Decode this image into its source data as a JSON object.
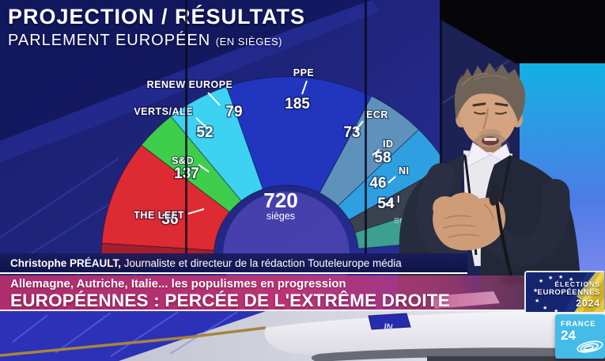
{
  "header": {
    "title": "PROJECTION / RÉSULTATS",
    "subtitle": "PARLEMENT EUROPÉEN",
    "subtitle_note": "(EN SIÈGES)"
  },
  "chart_data": {
    "type": "pie",
    "variant": "hemicycle-semicircle",
    "title": "PROJECTION / RÉSULTATS",
    "subtitle": "PARLEMENT EUROPÉEN (EN SIÈGES)",
    "total": {
      "value": "720",
      "unit": "sièges"
    },
    "source_label": "SOURCE",
    "segments": [
      {
        "label": "THE LEFT",
        "value": 36,
        "color": "#a31f2c"
      },
      {
        "label": "S&D",
        "value": 137,
        "color": "#de2a33"
      },
      {
        "label": "VERTS/ALE",
        "value": 52,
        "color": "#3fce4c"
      },
      {
        "label": "RENEW EUROPE",
        "value": 79,
        "color": "#3dd1f2"
      },
      {
        "label": "PPE",
        "value": 185,
        "color": "#2135be"
      },
      {
        "label": "ECR",
        "value": 73,
        "color": "#5e92bc"
      },
      {
        "label": "ID",
        "value": 58,
        "color": "#2ea0e2"
      },
      {
        "label": "NI",
        "value": 46,
        "color": "#39424e"
      },
      {
        "label": "I",
        "value": 54,
        "color": "#3d9e92"
      }
    ]
  },
  "lower_third": {
    "speaker_name": "Christophe PRÉAULT,",
    "speaker_role": " Journaliste et directeur de la rédaction Touteleurope média",
    "kicker": "Allemagne, Autriche, Italie... les populismes en progression",
    "headline": "EUROPÉENNES : PERCÉE DE L'EXTRÊME DROITE"
  },
  "badge": {
    "line1": "ÉLECTIONS",
    "line2": "EUROPÉENNES",
    "year": "2024"
  },
  "channel_logo": {
    "line1": "FRANCE",
    "line2": "24"
  },
  "desk_cube_text": "NI"
}
